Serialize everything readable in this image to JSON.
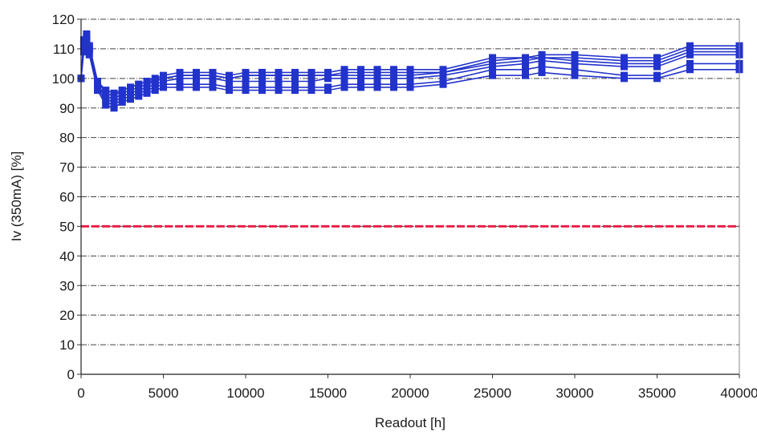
{
  "chart_data": {
    "type": "line",
    "xlabel": "Readout [h]",
    "ylabel": "Iv (350mA) [%]",
    "xlim": [
      0,
      40000
    ],
    "ylim": [
      0,
      120
    ],
    "x_ticks": [
      0,
      5000,
      10000,
      15000,
      20000,
      25000,
      30000,
      35000,
      40000
    ],
    "y_ticks": [
      0,
      10,
      20,
      30,
      40,
      50,
      60,
      70,
      80,
      90,
      100,
      110,
      120
    ],
    "grid": "horizontal",
    "legend": "none",
    "colors": {
      "series": "#2233cc",
      "threshold": "#e8204a",
      "grid": "#444444"
    },
    "x": [
      0,
      168,
      336,
      500,
      1000,
      1500,
      2000,
      2500,
      3000,
      3500,
      4000,
      4500,
      5000,
      6000,
      7000,
      8000,
      9000,
      10000,
      11000,
      12000,
      13000,
      14000,
      15000,
      16000,
      17000,
      18000,
      19000,
      20000,
      22000,
      25000,
      27000,
      28000,
      30000,
      33000,
      35000,
      37000,
      40000
    ],
    "series": [
      {
        "values": [
          100,
          109,
          112,
          108,
          96,
          91,
          90,
          92,
          93,
          94,
          95,
          96,
          97,
          97,
          97,
          97,
          96,
          96,
          96,
          96,
          96,
          96,
          96,
          97,
          97,
          97,
          97,
          97,
          98,
          101,
          101,
          102,
          101,
          100,
          100,
          103,
          103
        ]
      },
      {
        "values": [
          100,
          110,
          113,
          109,
          97,
          92,
          91,
          93,
          94,
          95,
          96,
          97,
          98,
          98,
          98,
          98,
          97,
          97,
          97,
          97,
          97,
          97,
          97,
          98,
          98,
          98,
          98,
          98,
          99,
          103,
          103,
          104,
          103,
          101,
          101,
          105,
          105
        ]
      },
      {
        "values": [
          100,
          111,
          113,
          110,
          98,
          93,
          92,
          94,
          95,
          96,
          97,
          98,
          99,
          100,
          100,
          100,
          99,
          99,
          99,
          99,
          99,
          99,
          100,
          100,
          100,
          100,
          100,
          100,
          101,
          104,
          105,
          106,
          105,
          104,
          104,
          108,
          108
        ]
      },
      {
        "values": [
          100,
          112,
          114,
          110,
          98,
          94,
          93,
          95,
          96,
          97,
          98,
          99,
          100,
          101,
          101,
          101,
          100,
          101,
          101,
          101,
          101,
          101,
          101,
          101,
          101,
          101,
          101,
          101,
          102,
          105,
          106,
          107,
          106,
          105,
          105,
          109,
          109
        ]
      },
      {
        "values": [
          100,
          113,
          114,
          111,
          99,
          95,
          94,
          96,
          97,
          98,
          99,
          99,
          100,
          101,
          101,
          101,
          100,
          101,
          101,
          101,
          101,
          101,
          101,
          102,
          102,
          102,
          102,
          102,
          102,
          106,
          107,
          107,
          107,
          106,
          106,
          110,
          110
        ]
      },
      {
        "values": [
          100,
          113,
          115,
          111,
          99,
          96,
          95,
          96,
          97,
          98,
          99,
          100,
          101,
          102,
          102,
          102,
          101,
          102,
          102,
          102,
          102,
          102,
          102,
          103,
          103,
          103,
          103,
          103,
          103,
          107,
          107,
          108,
          108,
          107,
          107,
          111,
          111
        ]
      }
    ],
    "threshold": {
      "value": 50,
      "style": "dashed"
    }
  }
}
